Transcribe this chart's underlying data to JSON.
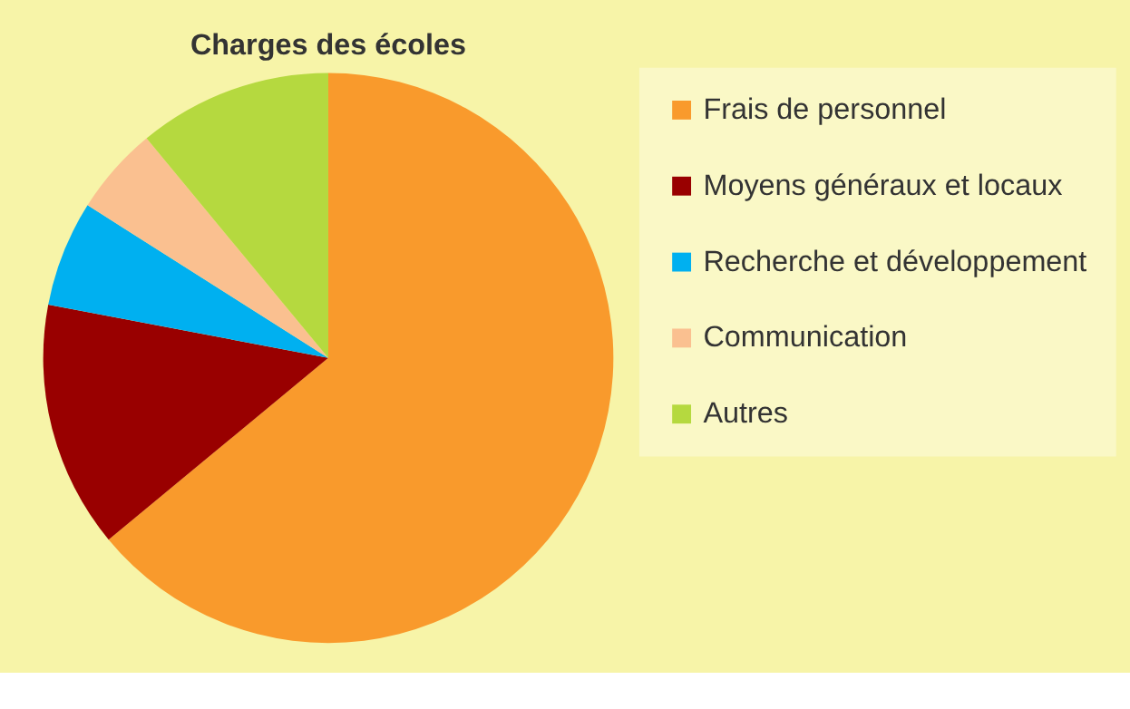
{
  "chart_data": {
    "type": "pie",
    "title": "Charges des écoles",
    "categories": [
      "Frais de personnel",
      "Moyens généraux et locaux",
      "Recherche et développement",
      "Communication",
      "Autres"
    ],
    "values": [
      64,
      14,
      6,
      5,
      11
    ],
    "colors": [
      "#f99a2c",
      "#990000",
      "#00b0f0",
      "#fac090",
      "#b5d93f"
    ],
    "legend": "right"
  }
}
